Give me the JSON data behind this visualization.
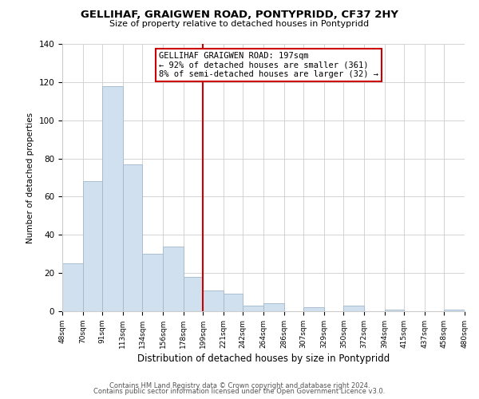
{
  "title": "GELLIHAF, GRAIGWEN ROAD, PONTYPRIDD, CF37 2HY",
  "subtitle": "Size of property relative to detached houses in Pontypridd",
  "xlabel": "Distribution of detached houses by size in Pontypridd",
  "ylabel": "Number of detached properties",
  "bar_color": "#d0e0ef",
  "bar_edge_color": "#a0b8cc",
  "bins": [
    48,
    70,
    91,
    113,
    134,
    156,
    178,
    199,
    221,
    242,
    264,
    286,
    307,
    329,
    350,
    372,
    394,
    415,
    437,
    458,
    480
  ],
  "bin_labels": [
    "48sqm",
    "70sqm",
    "91sqm",
    "113sqm",
    "134sqm",
    "156sqm",
    "178sqm",
    "199sqm",
    "221sqm",
    "242sqm",
    "264sqm",
    "286sqm",
    "307sqm",
    "329sqm",
    "350sqm",
    "372sqm",
    "394sqm",
    "415sqm",
    "437sqm",
    "458sqm",
    "480sqm"
  ],
  "values": [
    25,
    68,
    118,
    77,
    30,
    34,
    18,
    11,
    9,
    3,
    4,
    0,
    2,
    0,
    3,
    0,
    1,
    0,
    0,
    1
  ],
  "ylim": [
    0,
    140
  ],
  "yticks": [
    0,
    20,
    40,
    60,
    80,
    100,
    120,
    140
  ],
  "vline_x": 199,
  "vline_color": "#cc0000",
  "annotation_title": "GELLIHAF GRAIGWEN ROAD: 197sqm",
  "annotation_line1": "← 92% of detached houses are smaller (361)",
  "annotation_line2": "8% of semi-detached houses are larger (32) →",
  "annotation_box_color": "#ffffff",
  "annotation_box_edge": "#cc0000",
  "footer1": "Contains HM Land Registry data © Crown copyright and database right 2024.",
  "footer2": "Contains public sector information licensed under the Open Government Licence v3.0.",
  "background_color": "#ffffff",
  "grid_color": "#cccccc"
}
